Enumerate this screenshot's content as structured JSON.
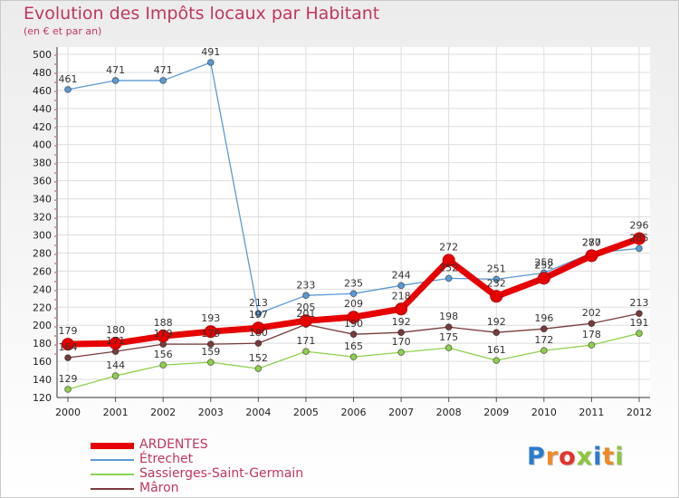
{
  "title": "Evolution des Impôts locaux par Habitant",
  "subtitle": "(en € et par an)",
  "logo": {
    "text": "Proxiti",
    "letter_colors": [
      "#2b7bd0",
      "#f08a24",
      "#e5332a",
      "#8cc63f",
      "#2b7bd0",
      "#f08a24",
      "#8cc63f"
    ]
  },
  "chart_data": {
    "type": "line",
    "x": [
      "2000",
      "2001",
      "2002",
      "2003",
      "2004",
      "2005",
      "2006",
      "2007",
      "2008",
      "2009",
      "2010",
      "2011",
      "2012"
    ],
    "ylim": [
      120,
      500
    ],
    "yticks": [
      120,
      140,
      160,
      180,
      200,
      220,
      240,
      260,
      280,
      300,
      320,
      340,
      360,
      380,
      400,
      420,
      440,
      460,
      480,
      500
    ],
    "grid": true,
    "series": [
      {
        "name": "ARDENTES",
        "color": "#e60000",
        "values": [
          179,
          180,
          188,
          193,
          197,
          205,
          209,
          218,
          272,
          232,
          252,
          277,
          296
        ],
        "labels": [
          "179",
          "180",
          "188",
          "193",
          "197",
          "205",
          "209",
          "218",
          "272",
          "232",
          "252",
          "277",
          "296"
        ]
      },
      {
        "name": "Étrechet",
        "color": "#5b9bd5",
        "values": [
          461,
          471,
          471,
          491,
          213,
          233,
          235,
          244,
          252,
          251,
          258,
          280,
          285
        ],
        "labels": [
          "461",
          "471",
          "471",
          "491",
          "213",
          "233",
          "235",
          "244",
          "252",
          "251",
          "258",
          "280",
          "285"
        ]
      },
      {
        "name": "Sassierges-Saint-Germain",
        "color": "#8fd14f",
        "values": [
          129,
          144,
          156,
          159,
          152,
          171,
          165,
          170,
          175,
          161,
          172,
          178,
          191
        ],
        "labels": [
          "129",
          "144",
          "156",
          "159",
          "152",
          "171",
          "165",
          "170",
          "175",
          "161",
          "172",
          "178",
          "191"
        ]
      },
      {
        "name": "Mâron",
        "color": "#7a3b3b",
        "values": [
          164,
          171,
          179,
          179,
          180,
          201,
          190,
          192,
          198,
          192,
          196,
          202,
          213
        ],
        "labels": [
          "164",
          "171",
          "179",
          "179",
          "180",
          "201",
          "190",
          "192",
          "198",
          "192",
          "196",
          "202",
          "213"
        ]
      }
    ]
  }
}
